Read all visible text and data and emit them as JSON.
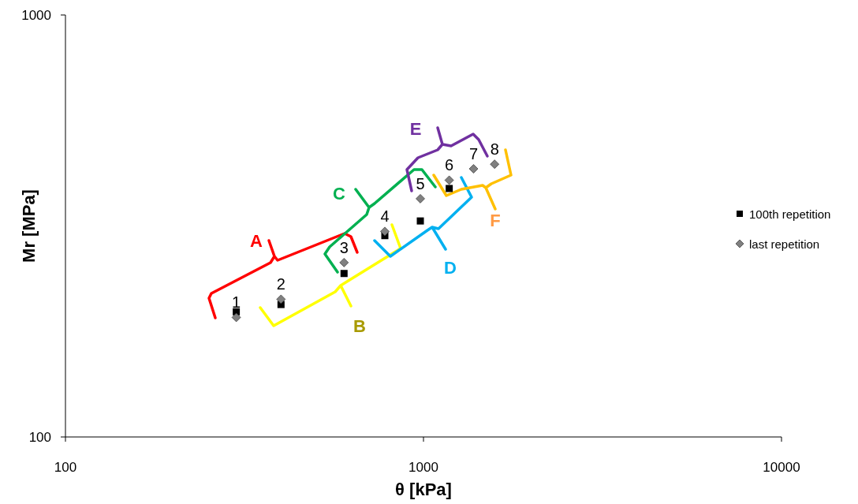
{
  "chart_data": {
    "type": "scatter",
    "xlabel": "θ [kPa]",
    "ylabel": "Mr [MPa]",
    "log": "xy",
    "xlim": [
      100,
      10000
    ],
    "xticks": [
      100,
      1000,
      10000
    ],
    "ylim": [
      100,
      1000
    ],
    "yticks": [
      100,
      1000
    ],
    "grid": false,
    "legend": "right",
    "x": [
      300,
      400,
      600,
      780,
      980,
      1180,
      1380,
      1580
    ],
    "series": [
      {
        "name": "100th repetition",
        "color": "#000000",
        "marker": "square",
        "values": [
          198,
          206,
          244,
          300,
          325,
          388,
          null,
          null
        ]
      },
      {
        "name": "last repetition",
        "color": "#808080",
        "marker": "diamond",
        "values": [
          192,
          212,
          259,
          307,
          367,
          406,
          432,
          443
        ]
      }
    ],
    "annotations": [
      {
        "text": "1",
        "x": 300,
        "y": 192
      },
      {
        "text": "2",
        "x": 400,
        "y": 212
      },
      {
        "text": "3",
        "x": 600,
        "y": 259
      },
      {
        "text": "4",
        "x": 780,
        "y": 307
      },
      {
        "text": "5",
        "x": 980,
        "y": 367
      },
      {
        "text": "6",
        "x": 1180,
        "y": 406
      },
      {
        "text": "7",
        "x": 1380,
        "y": 432
      },
      {
        "text": "8",
        "x": 1580,
        "y": 443
      },
      "A",
      "B",
      "C",
      "D",
      "E",
      "F"
    ]
  }
}
